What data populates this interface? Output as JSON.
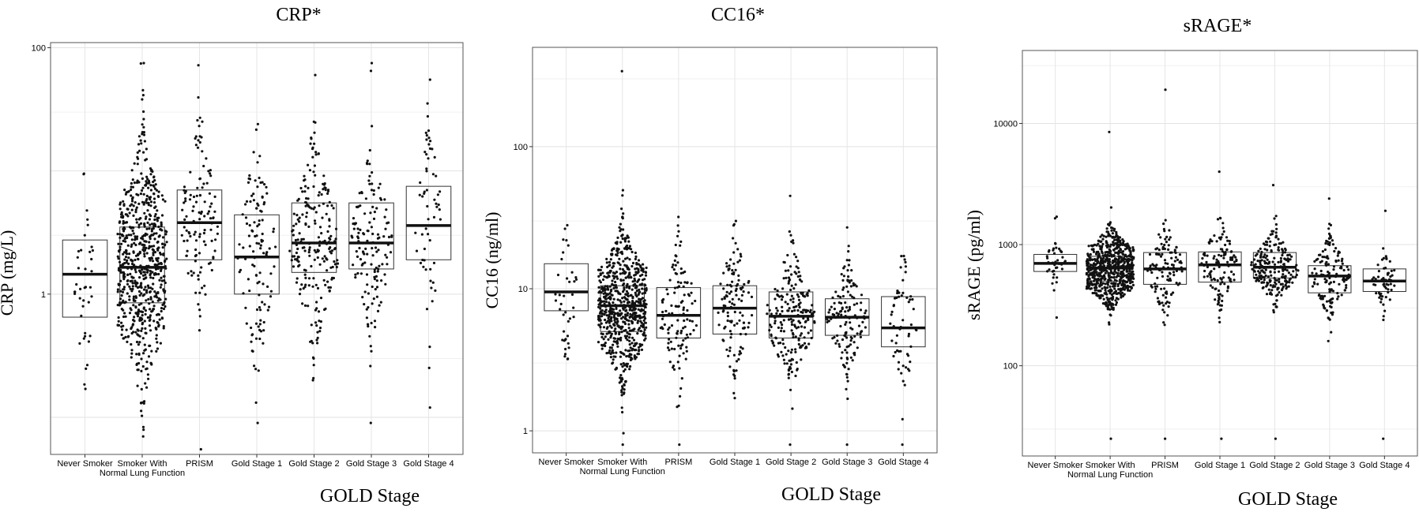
{
  "chart_data": [
    {
      "type": "box",
      "title": "CRP*",
      "xlabel": "GOLD Stage",
      "ylabel": "CRP (mg/L)",
      "yscale": "log",
      "ylim": [
        0.05,
        110
      ],
      "yticks": [
        {
          "value": 1,
          "label": "1"
        },
        {
          "value": 100,
          "label": "100"
        }
      ],
      "categories": [
        {
          "line1": "Never Smoker",
          "line2": ""
        },
        {
          "line1": "Smoker With",
          "line2": "Normal Lung Function"
        },
        {
          "line1": "PRISM",
          "line2": ""
        },
        {
          "line1": "Gold Stage 1",
          "line2": ""
        },
        {
          "line1": "Gold Stage 2",
          "line2": ""
        },
        {
          "line1": "Gold Stage 3",
          "line2": ""
        },
        {
          "line1": "Gold Stage 4",
          "line2": ""
        }
      ],
      "boxes": [
        {
          "q1": 0.65,
          "median": 1.45,
          "q3": 2.75,
          "min": 0.17,
          "max": 9.5,
          "n": 40
        },
        {
          "q1": 0.85,
          "median": 1.65,
          "q3": 3.5,
          "min": 0.07,
          "max": 75,
          "n": 700
        },
        {
          "q1": 1.9,
          "median": 3.8,
          "q3": 7.0,
          "min": 0.055,
          "max": 72,
          "n": 120
        },
        {
          "q1": 1.0,
          "median": 2.0,
          "q3": 4.4,
          "min": 0.09,
          "max": 24,
          "n": 120
        },
        {
          "q1": 1.5,
          "median": 2.6,
          "q3": 5.5,
          "min": 0.2,
          "max": 60,
          "n": 220
        },
        {
          "q1": 1.6,
          "median": 2.6,
          "q3": 5.5,
          "min": 0.09,
          "max": 75,
          "n": 140
        },
        {
          "q1": 1.9,
          "median": 3.6,
          "q3": 7.5,
          "min": 0.12,
          "max": 55,
          "n": 60
        }
      ]
    },
    {
      "type": "box",
      "title": "CC16*",
      "xlabel": "GOLD Stage",
      "ylabel": "CC16 (ng/ml)",
      "yscale": "log",
      "ylim": [
        0.7,
        500
      ],
      "yticks": [
        {
          "value": 1,
          "label": "1"
        },
        {
          "value": 10,
          "label": "10"
        },
        {
          "value": 100,
          "label": "100"
        }
      ],
      "categories": [
        {
          "line1": "Never Smoker",
          "line2": ""
        },
        {
          "line1": "Smoker With",
          "line2": "Normal Lung Function"
        },
        {
          "line1": "PRISM",
          "line2": ""
        },
        {
          "line1": "Gold Stage 1",
          "line2": ""
        },
        {
          "line1": "Gold Stage 2",
          "line2": ""
        },
        {
          "line1": "Gold Stage 3",
          "line2": ""
        },
        {
          "line1": "Gold Stage 4",
          "line2": ""
        }
      ],
      "boxes": [
        {
          "q1": 7.0,
          "median": 9.5,
          "q3": 15,
          "min": 3.2,
          "max": 28,
          "n": 40
        },
        {
          "q1": 5.0,
          "median": 7.6,
          "q3": 10.5,
          "min": 0.8,
          "max": 340,
          "n": 700
        },
        {
          "q1": 4.5,
          "median": 6.5,
          "q3": 10.2,
          "min": 0.8,
          "max": 32,
          "n": 120
        },
        {
          "q1": 4.8,
          "median": 7.3,
          "q3": 10.5,
          "min": 1.7,
          "max": 30,
          "n": 120
        },
        {
          "q1": 4.5,
          "median": 6.4,
          "q3": 9.5,
          "min": 0.8,
          "max": 45,
          "n": 220
        },
        {
          "q1": 4.7,
          "median": 6.3,
          "q3": 8.5,
          "min": 0.8,
          "max": 27,
          "n": 140
        },
        {
          "q1": 3.9,
          "median": 5.3,
          "q3": 8.8,
          "min": 0.8,
          "max": 17,
          "n": 60
        }
      ]
    },
    {
      "type": "box",
      "title": "sRAGE*",
      "xlabel": "GOLD Stage",
      "ylabel": "sRAGE (pg/ml)",
      "yscale": "log",
      "ylim": [
        18,
        40000
      ],
      "yticks": [
        {
          "value": 100,
          "label": "100"
        },
        {
          "value": 1000,
          "label": "1000"
        },
        {
          "value": 10000,
          "label": "10000"
        }
      ],
      "categories": [
        {
          "line1": "Never Smoker",
          "line2": ""
        },
        {
          "line1": "Smoker With",
          "line2": "Normal Lung Function"
        },
        {
          "line1": "PRISM",
          "line2": ""
        },
        {
          "line1": "Gold Stage 1",
          "line2": ""
        },
        {
          "line1": "Gold Stage 2",
          "line2": ""
        },
        {
          "line1": "Gold Stage 3",
          "line2": ""
        },
        {
          "line1": "Gold Stage 4",
          "line2": ""
        }
      ],
      "boxes": [
        {
          "q1": 600,
          "median": 700,
          "q3": 830,
          "min": 250,
          "max": 1700,
          "n": 40
        },
        {
          "q1": 500,
          "median": 640,
          "q3": 800,
          "min": 25,
          "max": 8500,
          "n": 700
        },
        {
          "q1": 470,
          "median": 630,
          "q3": 860,
          "min": 25,
          "max": 19000,
          "n": 120
        },
        {
          "q1": 490,
          "median": 680,
          "q3": 870,
          "min": 25,
          "max": 4000,
          "n": 120
        },
        {
          "q1": 530,
          "median": 650,
          "q3": 860,
          "min": 25,
          "max": 3100,
          "n": 220
        },
        {
          "q1": 400,
          "median": 550,
          "q3": 670,
          "min": 160,
          "max": 2400,
          "n": 140
        },
        {
          "q1": 410,
          "median": 500,
          "q3": 630,
          "min": 25,
          "max": 1900,
          "n": 60
        }
      ]
    }
  ]
}
